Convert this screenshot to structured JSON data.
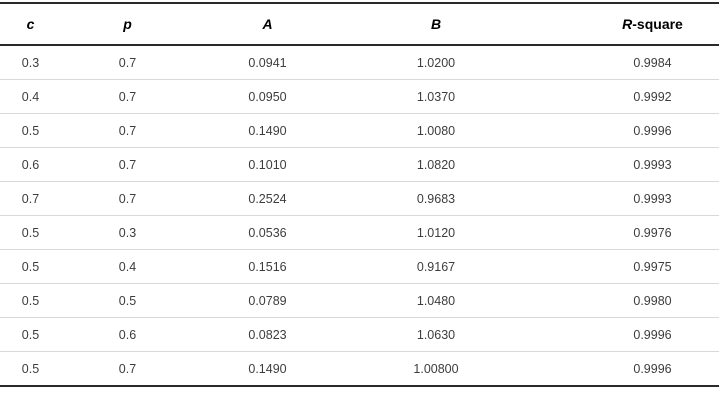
{
  "table": {
    "headers": [
      {
        "italic": "c",
        "rest": ""
      },
      {
        "italic": "p",
        "rest": ""
      },
      {
        "italic": "A",
        "rest": ""
      },
      {
        "italic": "B",
        "rest": ""
      },
      {
        "italic": "R",
        "rest": "-square"
      }
    ],
    "rows": [
      [
        "0.3",
        "0.7",
        "0.0941",
        "1.0200",
        "0.9984"
      ],
      [
        "0.4",
        "0.7",
        "0.0950",
        "1.0370",
        "0.9992"
      ],
      [
        "0.5",
        "0.7",
        "0.1490",
        "1.0080",
        "0.9996"
      ],
      [
        "0.6",
        "0.7",
        "0.1010",
        "1.0820",
        "0.9993"
      ],
      [
        "0.7",
        "0.7",
        "0.2524",
        "0.9683",
        "0.9993"
      ],
      [
        "0.5",
        "0.3",
        "0.0536",
        "1.0120",
        "0.9976"
      ],
      [
        "0.5",
        "0.4",
        "0.1516",
        "0.9167",
        "0.9975"
      ],
      [
        "0.5",
        "0.5",
        "0.0789",
        "1.0480",
        "0.9980"
      ],
      [
        "0.5",
        "0.6",
        "0.0823",
        "1.0630",
        "0.9996"
      ],
      [
        "0.5",
        "0.7",
        "0.1490",
        "1.00800",
        "0.9996"
      ]
    ]
  },
  "colors": {
    "background": "#ffffff",
    "border_dark": "#2a2a2a",
    "row_separator": "#d9d9d9",
    "header_text": "#000000",
    "cell_text": "#3d3d3d"
  }
}
